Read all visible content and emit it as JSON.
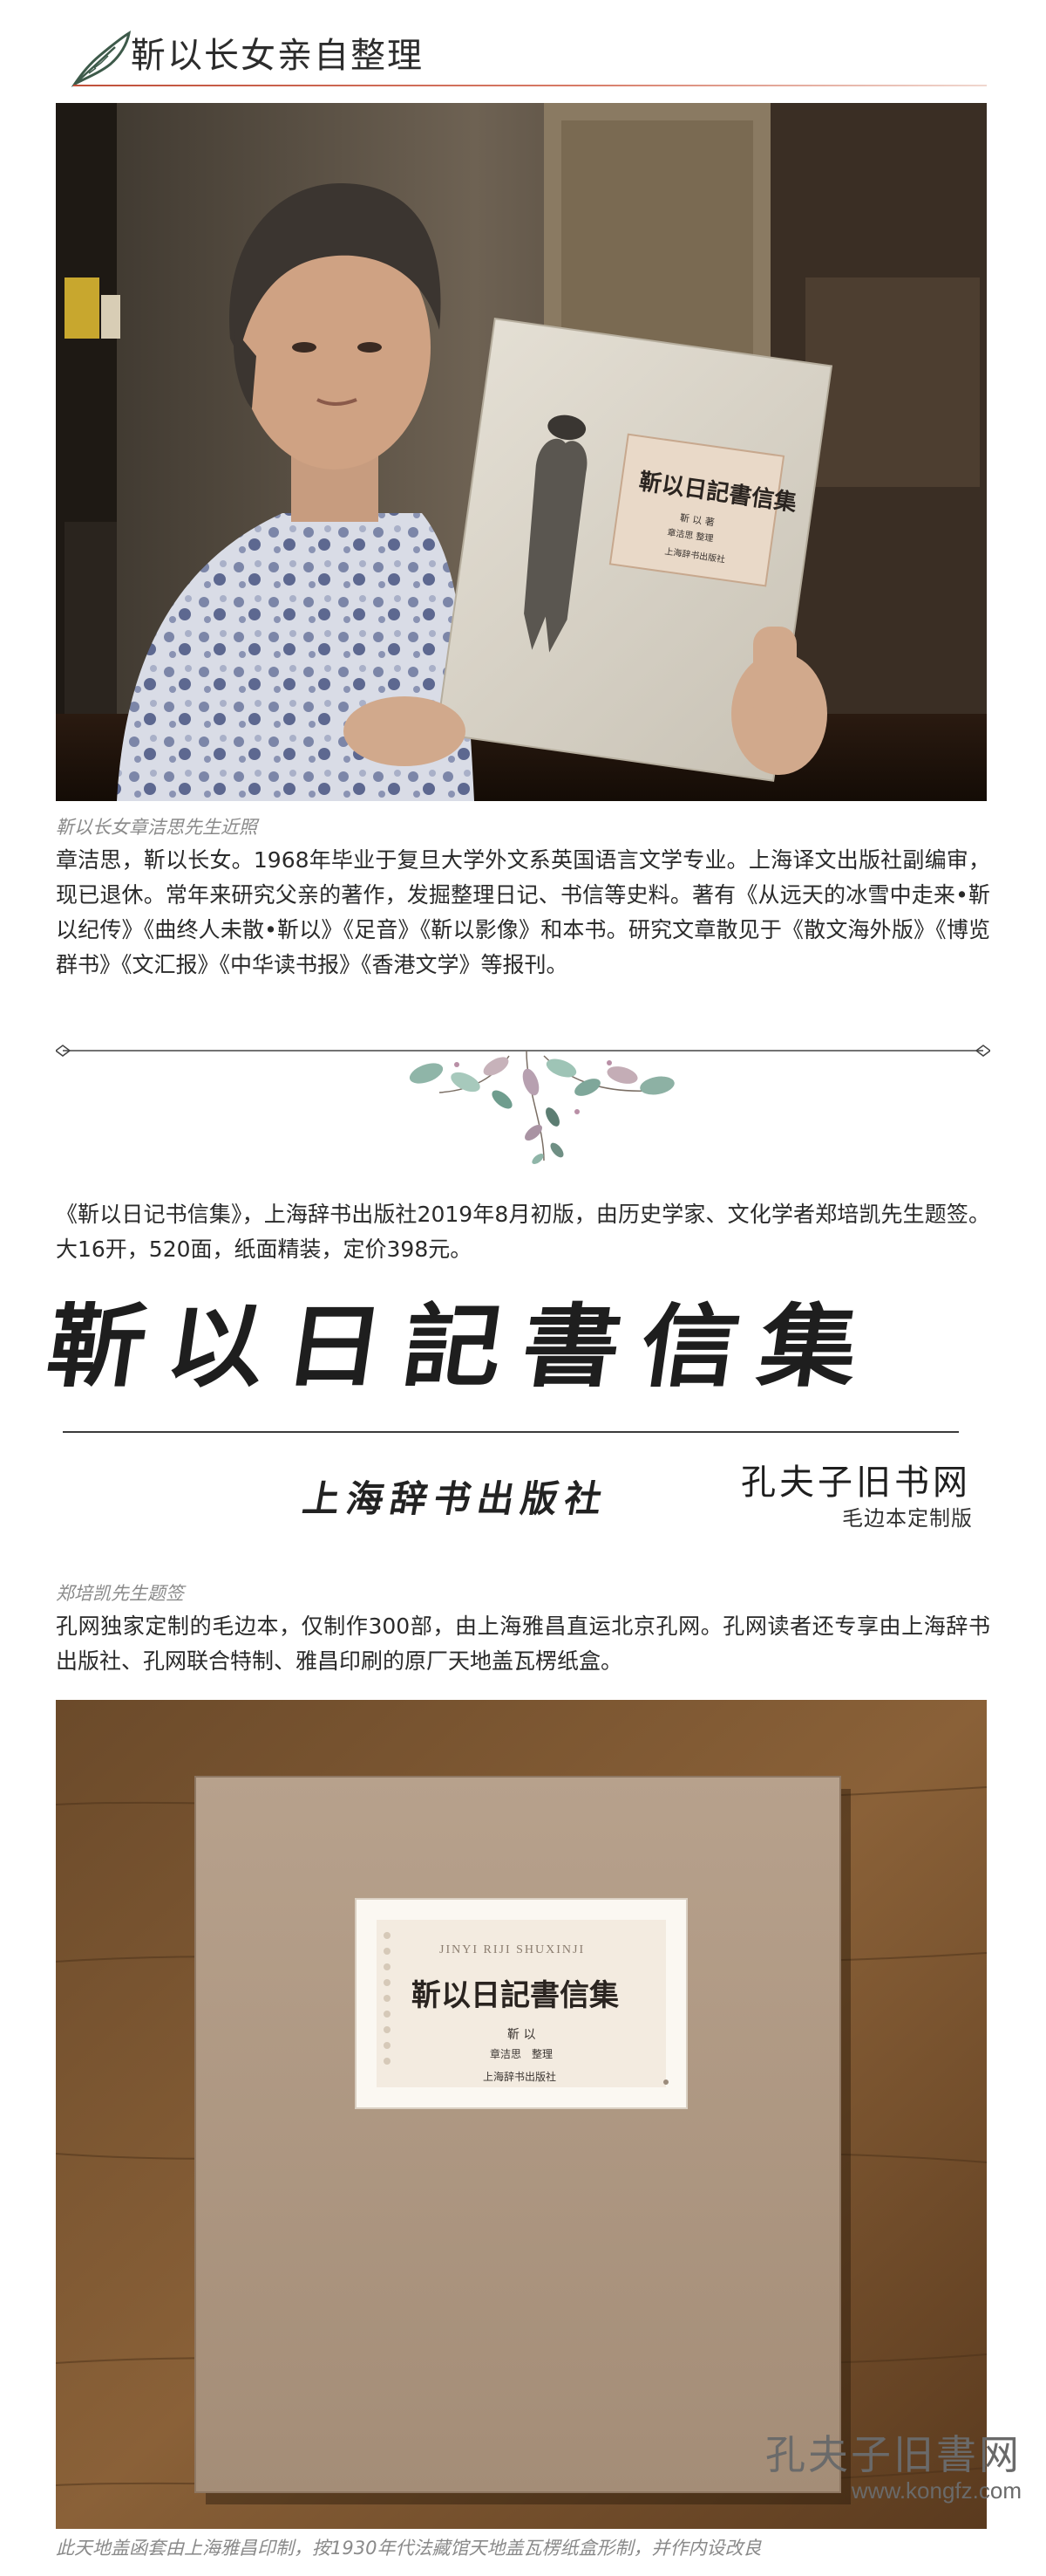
{
  "header": {
    "title": "靳以长女亲自整理",
    "icon": "feather-pen-icon",
    "accent_color": "#c0503a"
  },
  "section_portrait": {
    "caption": "靳以长女章洁思先生近照",
    "paragraph": "章洁思，靳以长女。1968年毕业于复旦大学外文系英国语言文学专业。上海译文出版社副编审，现已退休。常年来研究父亲的著作，发掘整理日记、书信等史料。著有《从远天的冰雪中走来•靳以纪传》《曲终人未散•靳以》《足音》《靳以影像》和本书。研究文章散见于《散文海外版》《博览群书》《文汇报》《中华读书报》《香港文学》等报刊。"
  },
  "book_in_photo": {
    "title": "靳以日記書信集",
    "author": "靳 以 著",
    "editor": "章洁思 整理",
    "publisher": "上海辞书出版社"
  },
  "section_book": {
    "paragraph": "《靳以日记书信集》，上海辞书出版社2019年8月初版，由历史学家、文化学者郑培凯先生题签。大16开，520面，纸面精装，定价398元。",
    "calligraphy_title": "靳以日記書信集",
    "publisher_calligraphy": "上海辞书出版社",
    "brand": "孔夫子旧书网",
    "brand_sub": "毛边本定制版"
  },
  "section_edition": {
    "caption": "郑培凯先生题签",
    "paragraph": "孔网独家定制的毛边本，仅制作300部，由上海雅昌直运北京孔网。孔网读者还专享由上海辞书出版社、孔网联合特制、雅昌印刷的原厂天地盖瓦楞纸盒。"
  },
  "box_label": {
    "pinyin": "JINYI RIJI SHUXINJI",
    "title": "靳以日記書信集",
    "author": "靳 以",
    "editor": "章洁思　整理",
    "publisher": "上海辞书出版社"
  },
  "section_box": {
    "caption": "此天地盖函套由上海雅昌印制，按1930年代法藏馆天地盖瓦楞纸盒形制，并作内设改良"
  },
  "watermark": {
    "brand": "孔夫子旧書网",
    "url": "www.kongfz.com"
  }
}
